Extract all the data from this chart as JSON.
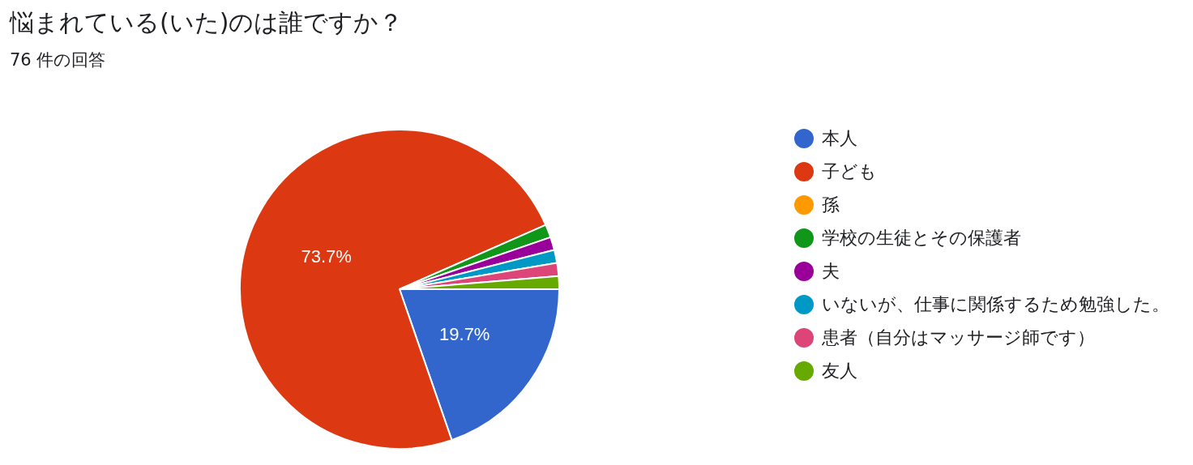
{
  "chart_data": {
    "type": "pie",
    "title": "悩まれている(いた)のは誰ですか？",
    "subtitle": "76 件の回答",
    "categories": [
      "本人",
      "子ども",
      "孫",
      "学校の生徒とその保護者",
      "夫",
      "いないが、仕事に関係するため勉強した。",
      "患者（自分はマッサージ師です）",
      "友人"
    ],
    "values": [
      19.7,
      73.7,
      0,
      1.32,
      1.32,
      1.32,
      1.32,
      1.32
    ],
    "colors": [
      "#3366cc",
      "#dc3912",
      "#ff9900",
      "#109618",
      "#990099",
      "#0099c6",
      "#dd4477",
      "#66aa00"
    ],
    "value_labels": [
      "19.7%",
      "73.7%",
      null,
      null,
      null,
      null,
      null,
      null
    ],
    "legend": "right"
  }
}
